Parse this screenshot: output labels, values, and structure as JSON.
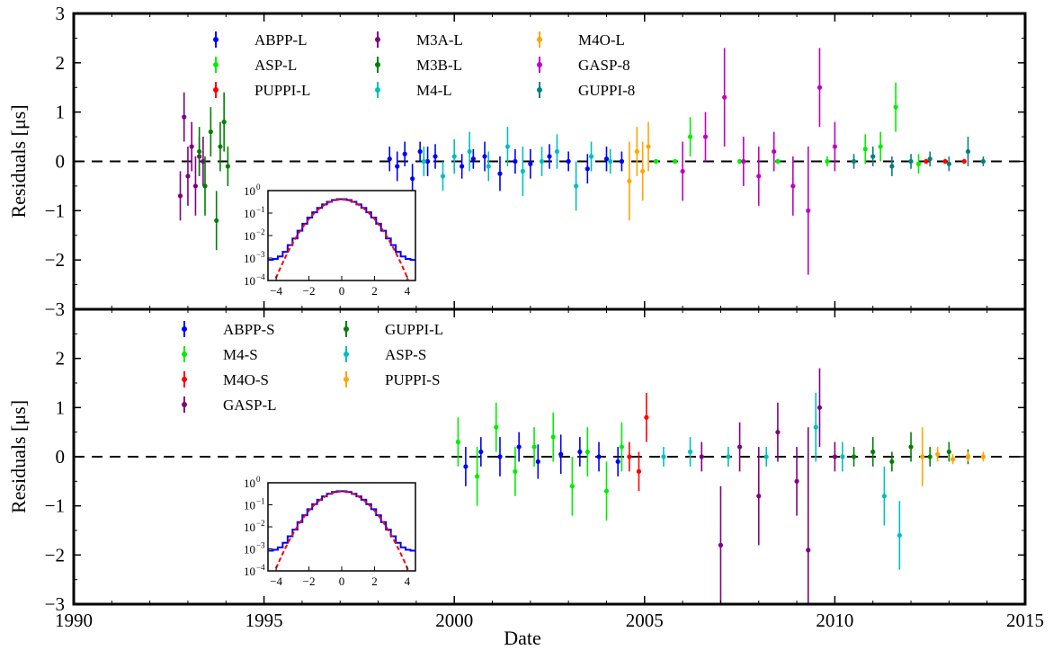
{
  "chart_data": {
    "type": "scatter",
    "xlabel": "Date",
    "xlim": [
      1990,
      2015
    ],
    "xticks": [
      1990,
      1995,
      2000,
      2005,
      2010,
      2015
    ],
    "panels": [
      {
        "id": "top",
        "ylabel": "Residuals [μs]",
        "ylim": [
          -3,
          3
        ],
        "yticks": [
          -3,
          -2,
          -1,
          0,
          1,
          2,
          3
        ],
        "reference_line": 0,
        "legend": {
          "placement": "top-center",
          "columns": 3
        },
        "series": [
          {
            "name": "ABPP-L",
            "color": "#0000ff",
            "x": [
              1998.3,
              1998.5,
              1998.7,
              1998.9,
              1999.1,
              1999.3,
              1999.5,
              2000.2,
              2000.5,
              2000.8,
              2001.2,
              2001.6,
              2002.0,
              2002.5,
              2003.0,
              2003.5,
              2004.0,
              2004.4
            ],
            "y": [
              0.05,
              -0.1,
              0.15,
              -0.35,
              0.2,
              0.0,
              0.1,
              -0.1,
              0.05,
              0.1,
              -0.25,
              0.0,
              -0.05,
              0.1,
              0.0,
              -0.15,
              0.05,
              0.0
            ],
            "err": [
              0.25,
              0.3,
              0.25,
              0.3,
              0.2,
              0.3,
              0.25,
              0.25,
              0.2,
              0.3,
              0.35,
              0.25,
              0.3,
              0.25,
              0.2,
              0.3,
              0.25,
              0.2
            ]
          },
          {
            "name": "ASP-L",
            "color": "#00ee00",
            "x": [
              2005.3,
              2005.8,
              2006.2,
              2007.5,
              2008.5,
              2009.8,
              2010.8,
              2011.2,
              2011.6,
              2012.2
            ],
            "y": [
              0.0,
              0.0,
              0.5,
              0.0,
              0.0,
              0.0,
              0.25,
              0.3,
              1.1,
              -0.05
            ],
            "err": [
              0.05,
              0.05,
              0.4,
              0.05,
              0.05,
              0.1,
              0.3,
              0.3,
              0.5,
              0.2
            ]
          },
          {
            "name": "PUPPI-L",
            "color": "#ff0000",
            "x": [
              2012.4,
              2012.9,
              2013.4
            ],
            "y": [
              0.0,
              0.0,
              0.0
            ],
            "err": [
              0.05,
              0.05,
              0.05
            ]
          },
          {
            "name": "M3A-L",
            "color": "#800080",
            "x": [
              1992.8,
              1992.9,
              1993.0,
              1993.1,
              1993.2,
              1993.3,
              1993.4
            ],
            "y": [
              -0.7,
              0.9,
              -0.3,
              0.3,
              -0.5,
              0.1,
              0.0
            ],
            "err": [
              0.5,
              0.5,
              0.6,
              0.5,
              0.6,
              0.4,
              0.5
            ]
          },
          {
            "name": "M3B-L",
            "color": "#008000",
            "x": [
              1993.3,
              1993.45,
              1993.6,
              1993.75,
              1993.85,
              1993.95,
              1994.05
            ],
            "y": [
              0.2,
              -0.5,
              0.6,
              -1.2,
              0.3,
              0.8,
              -0.1
            ],
            "err": [
              0.5,
              0.6,
              0.5,
              0.6,
              0.5,
              0.6,
              0.4
            ]
          },
          {
            "name": "M4-L",
            "color": "#00bfbf",
            "x": [
              1999.2,
              1999.7,
              2000.0,
              2000.4,
              2000.9,
              2001.4,
              2001.8,
              2002.3,
              2002.7,
              2003.2,
              2003.6,
              2004.1
            ],
            "y": [
              0.0,
              -0.3,
              0.1,
              0.2,
              -0.1,
              0.3,
              -0.2,
              0.0,
              0.2,
              -0.5,
              0.1,
              0.0
            ],
            "err": [
              0.3,
              0.3,
              0.35,
              0.4,
              0.3,
              0.4,
              0.5,
              0.3,
              0.35,
              0.5,
              0.3,
              0.25
            ]
          },
          {
            "name": "M4O-L",
            "color": "#ffa500",
            "x": [
              2004.6,
              2004.8,
              2004.95,
              2005.1
            ],
            "y": [
              -0.4,
              0.2,
              -0.2,
              0.3
            ],
            "err": [
              0.8,
              0.5,
              0.6,
              0.5
            ]
          },
          {
            "name": "GASP-8",
            "color": "#c000c0",
            "x": [
              2006.0,
              2006.6,
              2007.1,
              2007.6,
              2008.0,
              2008.4,
              2008.9,
              2009.3,
              2009.6,
              2010.0
            ],
            "y": [
              -0.2,
              0.5,
              1.3,
              0.0,
              -0.3,
              0.2,
              -0.5,
              -1.0,
              1.5,
              0.3
            ],
            "err": [
              0.6,
              0.5,
              1.0,
              0.5,
              0.6,
              0.4,
              0.6,
              1.3,
              0.8,
              0.5
            ]
          },
          {
            "name": "GUPPI-8",
            "color": "#008080",
            "x": [
              2010.5,
              2011.0,
              2011.5,
              2012.0,
              2012.5,
              2013.0,
              2013.5,
              2013.9
            ],
            "y": [
              0.0,
              0.1,
              -0.1,
              0.0,
              0.05,
              -0.05,
              0.2,
              0.0
            ],
            "err": [
              0.15,
              0.2,
              0.2,
              0.15,
              0.15,
              0.15,
              0.3,
              0.1
            ]
          }
        ],
        "inset": {
          "xlim": [
            -4.5,
            4.5
          ],
          "xticks": [
            -4,
            -2,
            0,
            2,
            4
          ],
          "ylog": true,
          "ylim_exp": [
            -4,
            0
          ],
          "yticks": [
            "10^0",
            "10^-1",
            "10^-2",
            "10^-3",
            "10^-4"
          ],
          "histogram_color": "#0000ff",
          "fit_color": "#ff0000"
        }
      },
      {
        "id": "bottom",
        "ylabel": "Residuals [μs]",
        "ylim": [
          -3,
          3
        ],
        "yticks": [
          -3,
          -2,
          -1,
          0,
          1,
          2
        ],
        "reference_line": 0,
        "legend": {
          "placement": "top-left",
          "columns": 2
        },
        "series": [
          {
            "name": "ABPP-S",
            "color": "#0000ff",
            "x": [
              2000.3,
              2000.7,
              2001.2,
              2001.7,
              2002.2,
              2002.8,
              2003.3,
              2003.8,
              2004.3
            ],
            "y": [
              -0.2,
              0.1,
              0.0,
              0.2,
              -0.1,
              0.05,
              0.1,
              0.0,
              -0.1
            ],
            "err": [
              0.4,
              0.3,
              0.4,
              0.3,
              0.35,
              0.4,
              0.3,
              0.3,
              0.3
            ]
          },
          {
            "name": "M4-S",
            "color": "#00ee00",
            "x": [
              2000.1,
              2000.6,
              2001.1,
              2001.6,
              2002.1,
              2002.6,
              2003.1,
              2003.5,
              2004.0,
              2004.4
            ],
            "y": [
              0.3,
              -0.4,
              0.6,
              -0.3,
              0.2,
              0.4,
              -0.6,
              0.1,
              -0.7,
              0.2
            ],
            "err": [
              0.5,
              0.6,
              0.5,
              0.5,
              0.4,
              0.5,
              0.6,
              0.5,
              0.6,
              0.5
            ]
          },
          {
            "name": "M4O-S",
            "color": "#ff0000",
            "x": [
              2004.6,
              2004.85,
              2005.05
            ],
            "y": [
              0.0,
              -0.3,
              0.8
            ],
            "err": [
              0.3,
              0.4,
              0.5
            ]
          },
          {
            "name": "GASP-L",
            "color": "#800080",
            "x": [
              2006.5,
              2007.0,
              2007.5,
              2008.0,
              2008.5,
              2009.0,
              2009.3,
              2009.6,
              2010.0
            ],
            "y": [
              0.0,
              -1.8,
              0.2,
              -0.8,
              0.5,
              -0.5,
              -1.9,
              1.0,
              0.0
            ],
            "err": [
              0.3,
              1.2,
              0.5,
              1.0,
              0.6,
              0.7,
              2.5,
              0.8,
              0.3
            ]
          },
          {
            "name": "GUPPI-L",
            "color": "#008000",
            "x": [
              2010.5,
              2011.0,
              2011.5,
              2012.0,
              2012.5,
              2013.0,
              2013.5
            ],
            "y": [
              0.0,
              0.1,
              -0.1,
              0.2,
              0.0,
              0.1,
              0.0
            ],
            "err": [
              0.2,
              0.3,
              0.2,
              0.3,
              0.2,
              0.2,
              0.15
            ]
          },
          {
            "name": "ASP-S",
            "color": "#00bfbf",
            "x": [
              2005.5,
              2006.2,
              2007.2,
              2008.2,
              2009.5,
              2010.2,
              2011.3,
              2011.7
            ],
            "y": [
              0.0,
              0.1,
              0.0,
              0.0,
              0.6,
              0.0,
              -0.8,
              -1.6
            ],
            "err": [
              0.2,
              0.3,
              0.2,
              0.2,
              0.7,
              0.3,
              0.6,
              0.7
            ]
          },
          {
            "name": "PUPPI-S",
            "color": "#ffa500",
            "x": [
              2012.3,
              2012.7,
              2013.1,
              2013.5,
              2013.9
            ],
            "y": [
              0.0,
              0.05,
              -0.05,
              0.0,
              0.0
            ],
            "err": [
              0.6,
              0.15,
              0.1,
              0.1,
              0.1
            ]
          }
        ],
        "inset": {
          "xlim": [
            -4.5,
            4.5
          ],
          "xticks": [
            -4,
            -2,
            0,
            2,
            4
          ],
          "ylog": true,
          "ylim_exp": [
            -4,
            0
          ],
          "yticks": [
            "10^0",
            "10^-1",
            "10^-2",
            "10^-3",
            "10^-4"
          ],
          "histogram_color": "#0000ff",
          "fit_color": "#ff0000"
        }
      }
    ]
  }
}
